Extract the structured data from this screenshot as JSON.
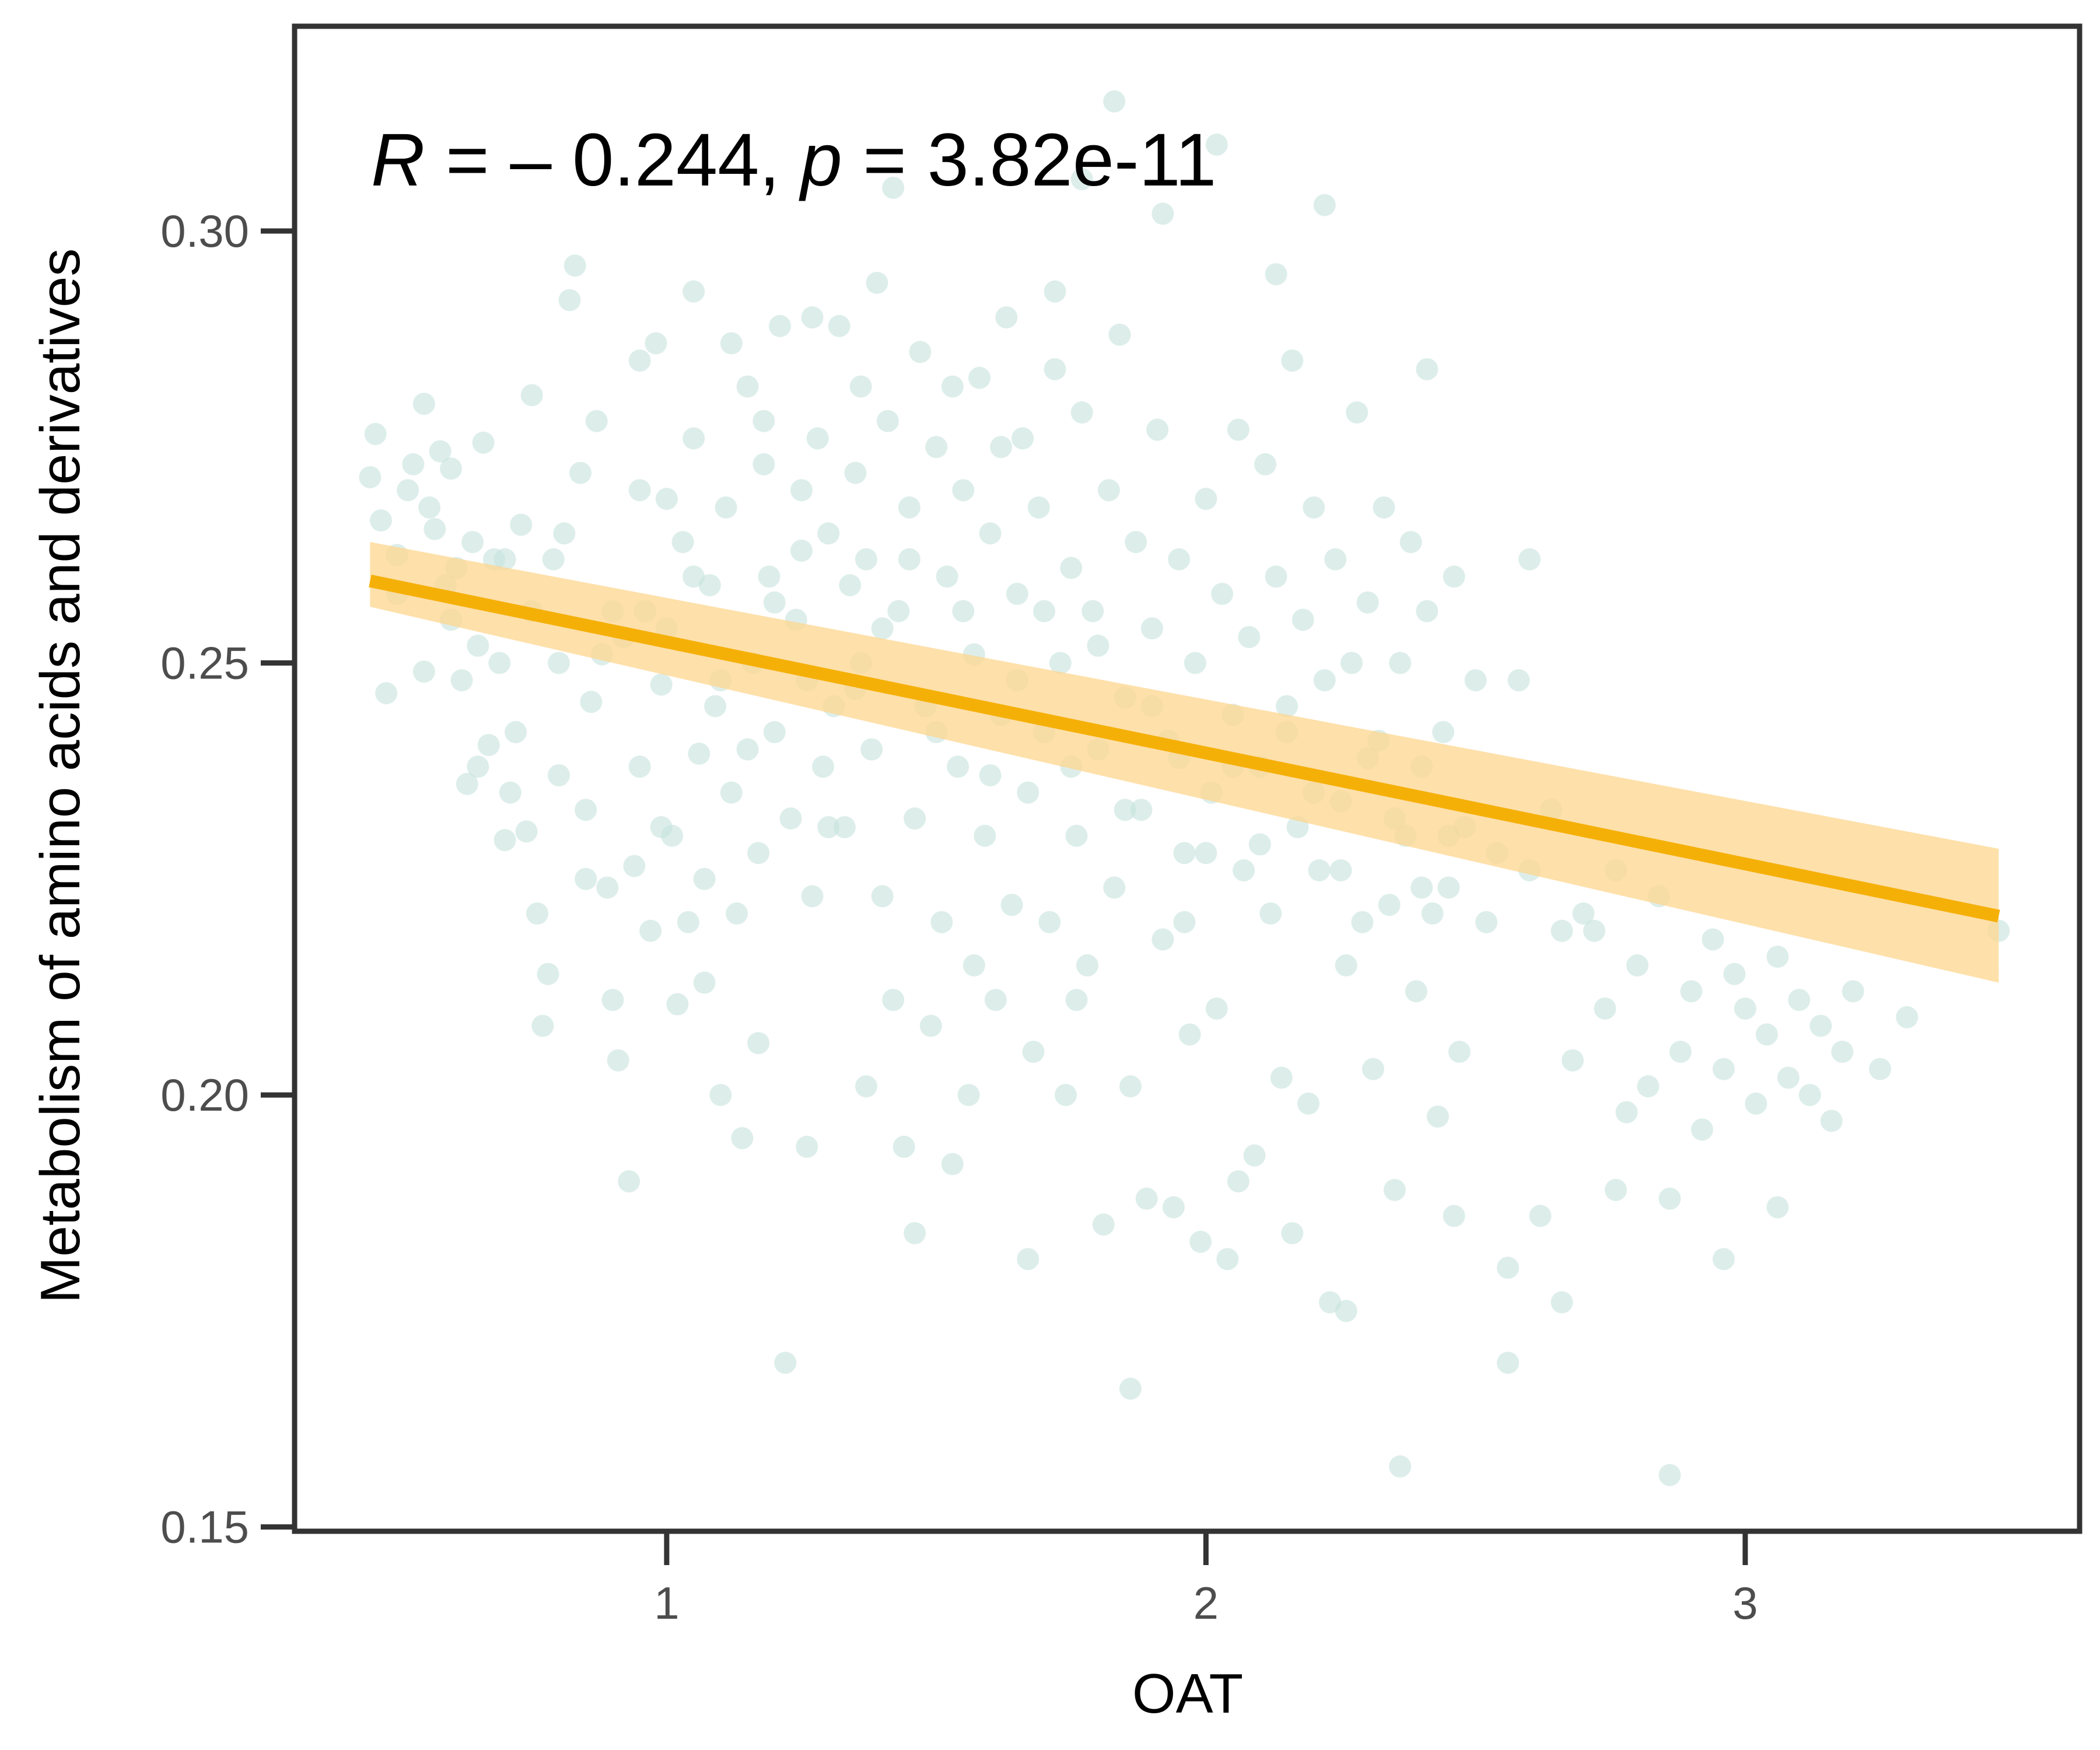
{
  "chart_data": {
    "type": "scatter",
    "xlabel": "OAT",
    "ylabel": "Metabolism of amino acids and derivatives",
    "xlim": [
      0.31,
      3.62
    ],
    "ylim": [
      0.1495,
      0.3237
    ],
    "xticks": [
      1,
      2,
      3
    ],
    "yticks": [
      0.15,
      0.2,
      0.25,
      0.3
    ],
    "xtick_labels": [
      "1",
      "2",
      "3"
    ],
    "ytick_labels": [
      "0.15",
      "0.20",
      "0.25",
      "0.30"
    ],
    "annotation": {
      "r_label": "R",
      "r_value": "= – 0.244,",
      "p_label": "p",
      "p_value": "= 3.82e-11"
    },
    "colors": {
      "points": "#c7e3dc",
      "line": "#f5b008",
      "band": "#fdd58e",
      "axis": "#333333"
    },
    "regression": {
      "x": [
        0.45,
        3.47
      ],
      "y": [
        0.2595,
        0.2207
      ],
      "ci_lower": [
        0.2565,
        0.213
      ],
      "ci_upper": [
        0.264,
        0.2285
      ]
    },
    "points": [
      [
        0.45,
        0.2715
      ],
      [
        0.46,
        0.2765
      ],
      [
        0.47,
        0.2665
      ],
      [
        0.48,
        0.2465
      ],
      [
        0.5,
        0.2625
      ],
      [
        0.52,
        0.27
      ],
      [
        0.53,
        0.273
      ],
      [
        0.55,
        0.28
      ],
      [
        0.56,
        0.268
      ],
      [
        0.57,
        0.2655
      ],
      [
        0.58,
        0.2745
      ],
      [
        0.59,
        0.259
      ],
      [
        0.6,
        0.2725
      ],
      [
        0.61,
        0.261
      ],
      [
        0.62,
        0.248
      ],
      [
        0.63,
        0.236
      ],
      [
        0.64,
        0.264
      ],
      [
        0.65,
        0.252
      ],
      [
        0.66,
        0.2755
      ],
      [
        0.67,
        0.2405
      ],
      [
        0.68,
        0.262
      ],
      [
        0.69,
        0.25
      ],
      [
        0.7,
        0.2295
      ],
      [
        0.71,
        0.235
      ],
      [
        0.72,
        0.242
      ],
      [
        0.73,
        0.266
      ],
      [
        0.74,
        0.2305
      ],
      [
        0.75,
        0.281
      ],
      [
        0.76,
        0.221
      ],
      [
        0.77,
        0.208
      ],
      [
        0.78,
        0.214
      ],
      [
        0.79,
        0.262
      ],
      [
        0.8,
        0.237
      ],
      [
        0.81,
        0.265
      ],
      [
        0.82,
        0.292
      ],
      [
        0.83,
        0.296
      ],
      [
        0.84,
        0.272
      ],
      [
        0.85,
        0.233
      ],
      [
        0.86,
        0.2455
      ],
      [
        0.87,
        0.278
      ],
      [
        0.88,
        0.251
      ],
      [
        0.89,
        0.224
      ],
      [
        0.9,
        0.211
      ],
      [
        0.91,
        0.204
      ],
      [
        0.92,
        0.253
      ],
      [
        0.93,
        0.19
      ],
      [
        0.94,
        0.2265
      ],
      [
        0.95,
        0.238
      ],
      [
        0.96,
        0.256
      ],
      [
        0.97,
        0.219
      ],
      [
        0.98,
        0.287
      ],
      [
        0.99,
        0.2475
      ],
      [
        1.0,
        0.269
      ],
      [
        1.01,
        0.23
      ],
      [
        1.02,
        0.2105
      ],
      [
        1.03,
        0.264
      ],
      [
        1.04,
        0.22
      ],
      [
        1.05,
        0.276
      ],
      [
        1.06,
        0.2395
      ],
      [
        1.07,
        0.225
      ],
      [
        1.08,
        0.259
      ],
      [
        1.09,
        0.245
      ],
      [
        1.1,
        0.2
      ],
      [
        1.11,
        0.268
      ],
      [
        1.12,
        0.235
      ],
      [
        1.13,
        0.221
      ],
      [
        1.14,
        0.195
      ],
      [
        1.15,
        0.282
      ],
      [
        1.16,
        0.25
      ],
      [
        1.17,
        0.228
      ],
      [
        1.18,
        0.273
      ],
      [
        1.19,
        0.26
      ],
      [
        1.2,
        0.242
      ],
      [
        1.21,
        0.289
      ],
      [
        1.22,
        0.169
      ],
      [
        1.23,
        0.232
      ],
      [
        1.24,
        0.255
      ],
      [
        1.25,
        0.27
      ],
      [
        1.26,
        0.248
      ],
      [
        1.27,
        0.223
      ],
      [
        1.28,
        0.276
      ],
      [
        1.29,
        0.238
      ],
      [
        1.3,
        0.265
      ],
      [
        1.31,
        0.245
      ],
      [
        1.32,
        0.289
      ],
      [
        1.33,
        0.231
      ],
      [
        1.34,
        0.259
      ],
      [
        1.35,
        0.272
      ],
      [
        1.36,
        0.25
      ],
      [
        1.37,
        0.262
      ],
      [
        1.38,
        0.24
      ],
      [
        1.39,
        0.294
      ],
      [
        1.4,
        0.223
      ],
      [
        1.41,
        0.278
      ],
      [
        1.42,
        0.211
      ],
      [
        1.43,
        0.256
      ],
      [
        1.44,
        0.194
      ],
      [
        1.45,
        0.268
      ],
      [
        1.46,
        0.232
      ],
      [
        1.47,
        0.286
      ],
      [
        1.48,
        0.245
      ],
      [
        1.49,
        0.208
      ],
      [
        1.5,
        0.275
      ],
      [
        1.51,
        0.22
      ],
      [
        1.52,
        0.26
      ],
      [
        1.53,
        0.192
      ],
      [
        1.54,
        0.238
      ],
      [
        1.55,
        0.27
      ],
      [
        1.56,
        0.2
      ],
      [
        1.57,
        0.251
      ],
      [
        1.58,
        0.283
      ],
      [
        1.59,
        0.23
      ],
      [
        1.6,
        0.265
      ],
      [
        1.61,
        0.211
      ],
      [
        1.62,
        0.244
      ],
      [
        1.63,
        0.29
      ],
      [
        1.64,
        0.222
      ],
      [
        1.65,
        0.258
      ],
      [
        1.66,
        0.276
      ],
      [
        1.67,
        0.235
      ],
      [
        1.68,
        0.205
      ],
      [
        1.69,
        0.268
      ],
      [
        1.7,
        0.242
      ],
      [
        1.71,
        0.22
      ],
      [
        1.72,
        0.293
      ],
      [
        1.73,
        0.25
      ],
      [
        1.74,
        0.2
      ],
      [
        1.75,
        0.261
      ],
      [
        1.76,
        0.23
      ],
      [
        1.77,
        0.279
      ],
      [
        1.78,
        0.215
      ],
      [
        1.79,
        0.256
      ],
      [
        1.8,
        0.24
      ],
      [
        1.81,
        0.185
      ],
      [
        1.82,
        0.27
      ],
      [
        1.83,
        0.224
      ],
      [
        1.84,
        0.288
      ],
      [
        1.85,
        0.246
      ],
      [
        1.86,
        0.201
      ],
      [
        1.87,
        0.264
      ],
      [
        1.88,
        0.233
      ],
      [
        1.89,
        0.188
      ],
      [
        1.9,
        0.254
      ],
      [
        1.91,
        0.277
      ],
      [
        1.92,
        0.218
      ],
      [
        1.93,
        0.241
      ],
      [
        1.94,
        0.187
      ],
      [
        1.95,
        0.262
      ],
      [
        1.96,
        0.228
      ],
      [
        1.97,
        0.207
      ],
      [
        1.98,
        0.25
      ],
      [
        1.99,
        0.183
      ],
      [
        2.0,
        0.269
      ],
      [
        2.01,
        0.235
      ],
      [
        2.02,
        0.21
      ],
      [
        2.03,
        0.258
      ],
      [
        2.04,
        0.181
      ],
      [
        2.05,
        0.244
      ],
      [
        2.06,
        0.277
      ],
      [
        2.07,
        0.226
      ],
      [
        2.08,
        0.253
      ],
      [
        2.09,
        0.193
      ],
      [
        2.1,
        0.238
      ],
      [
        2.11,
        0.273
      ],
      [
        2.12,
        0.221
      ],
      [
        2.13,
        0.26
      ],
      [
        2.14,
        0.202
      ],
      [
        2.15,
        0.245
      ],
      [
        2.16,
        0.285
      ],
      [
        2.17,
        0.231
      ],
      [
        2.18,
        0.255
      ],
      [
        2.19,
        0.199
      ],
      [
        2.2,
        0.268
      ],
      [
        2.21,
        0.226
      ],
      [
        2.22,
        0.248
      ],
      [
        2.23,
        0.176
      ],
      [
        2.24,
        0.262
      ],
      [
        2.25,
        0.234
      ],
      [
        2.26,
        0.215
      ],
      [
        2.27,
        0.25
      ],
      [
        2.28,
        0.279
      ],
      [
        2.29,
        0.22
      ],
      [
        2.3,
        0.257
      ],
      [
        2.31,
        0.203
      ],
      [
        2.32,
        0.241
      ],
      [
        2.33,
        0.268
      ],
      [
        2.34,
        0.222
      ],
      [
        2.35,
        0.189
      ],
      [
        2.36,
        0.25
      ],
      [
        2.37,
        0.23
      ],
      [
        2.38,
        0.264
      ],
      [
        2.39,
        0.212
      ],
      [
        2.4,
        0.238
      ],
      [
        2.41,
        0.256
      ],
      [
        2.42,
        0.221
      ],
      [
        2.43,
        0.1975
      ],
      [
        2.44,
        0.242
      ],
      [
        2.45,
        0.224
      ],
      [
        2.46,
        0.26
      ],
      [
        2.47,
        0.205
      ],
      [
        2.48,
        0.231
      ],
      [
        2.5,
        0.248
      ],
      [
        2.52,
        0.22
      ],
      [
        2.54,
        0.228
      ],
      [
        2.56,
        0.18
      ],
      [
        2.58,
        0.248
      ],
      [
        2.6,
        0.226
      ],
      [
        2.62,
        0.186
      ],
      [
        2.64,
        0.233
      ],
      [
        2.66,
        0.219
      ],
      [
        2.68,
        0.204
      ],
      [
        2.7,
        0.221
      ],
      [
        2.72,
        0.219
      ],
      [
        2.74,
        0.21
      ],
      [
        2.76,
        0.226
      ],
      [
        2.78,
        0.198
      ],
      [
        2.8,
        0.215
      ],
      [
        2.82,
        0.201
      ],
      [
        2.84,
        0.223
      ],
      [
        2.86,
        0.188
      ],
      [
        2.88,
        0.205
      ],
      [
        2.9,
        0.212
      ],
      [
        2.92,
        0.196
      ],
      [
        2.94,
        0.218
      ],
      [
        2.96,
        0.203
      ],
      [
        2.98,
        0.214
      ],
      [
        3.0,
        0.21
      ],
      [
        3.02,
        0.199
      ],
      [
        3.04,
        0.207
      ],
      [
        3.06,
        0.216
      ],
      [
        3.08,
        0.202
      ],
      [
        3.1,
        0.211
      ],
      [
        3.12,
        0.2
      ],
      [
        3.14,
        0.208
      ],
      [
        3.16,
        0.197
      ],
      [
        3.18,
        0.205
      ],
      [
        3.2,
        0.212
      ],
      [
        3.25,
        0.203
      ],
      [
        3.3,
        0.209
      ],
      [
        3.47,
        0.219
      ],
      [
        0.5,
        0.258
      ],
      [
        0.55,
        0.249
      ],
      [
        0.6,
        0.255
      ],
      [
        0.65,
        0.238
      ],
      [
        0.7,
        0.262
      ],
      [
        0.75,
        0.256
      ],
      [
        0.8,
        0.25
      ],
      [
        0.85,
        0.225
      ],
      [
        0.9,
        0.256
      ],
      [
        0.95,
        0.27
      ],
      [
        1.0,
        0.254
      ],
      [
        1.05,
        0.26
      ],
      [
        1.1,
        0.248
      ],
      [
        1.15,
        0.24
      ],
      [
        1.2,
        0.257
      ],
      [
        1.25,
        0.263
      ],
      [
        1.3,
        0.231
      ],
      [
        1.35,
        0.247
      ],
      [
        1.4,
        0.254
      ],
      [
        1.45,
        0.262
      ],
      [
        1.5,
        0.242
      ],
      [
        1.55,
        0.256
      ],
      [
        1.6,
        0.237
      ],
      [
        1.65,
        0.248
      ],
      [
        1.7,
        0.256
      ],
      [
        1.75,
        0.238
      ],
      [
        1.8,
        0.252
      ],
      [
        1.85,
        0.233
      ],
      [
        1.9,
        0.245
      ],
      [
        1.95,
        0.239
      ],
      [
        2.0,
        0.228
      ],
      [
        2.05,
        0.238
      ],
      [
        2.1,
        0.229
      ],
      [
        2.15,
        0.242
      ],
      [
        2.2,
        0.235
      ],
      [
        2.25,
        0.226
      ],
      [
        2.3,
        0.239
      ],
      [
        2.35,
        0.232
      ],
      [
        2.4,
        0.224
      ],
      [
        2.45,
        0.23
      ],
      [
        0.95,
        0.285
      ],
      [
        1.05,
        0.293
      ],
      [
        1.12,
        0.287
      ],
      [
        1.18,
        0.278
      ],
      [
        1.27,
        0.29
      ],
      [
        1.36,
        0.282
      ],
      [
        1.42,
        0.305
      ],
      [
        1.53,
        0.282
      ],
      [
        1.62,
        0.275
      ],
      [
        1.72,
        0.284
      ],
      [
        1.77,
        0.306
      ],
      [
        1.83,
        0.315
      ],
      [
        1.92,
        0.302
      ],
      [
        2.02,
        0.31
      ],
      [
        2.13,
        0.295
      ],
      [
        2.22,
        0.303
      ],
      [
        2.41,
        0.284
      ],
      [
        2.6,
        0.262
      ],
      [
        0.99,
        0.231
      ],
      [
        1.07,
        0.213
      ],
      [
        1.17,
        0.206
      ],
      [
        1.26,
        0.194
      ],
      [
        1.37,
        0.201
      ],
      [
        1.46,
        0.184
      ],
      [
        1.57,
        0.215
      ],
      [
        1.67,
        0.181
      ],
      [
        1.76,
        0.211
      ],
      [
        1.86,
        0.166
      ],
      [
        1.96,
        0.22
      ],
      [
        2.06,
        0.19
      ],
      [
        2.16,
        0.184
      ],
      [
        2.26,
        0.175
      ],
      [
        2.36,
        0.157
      ],
      [
        2.46,
        0.186
      ],
      [
        2.56,
        0.169
      ],
      [
        2.66,
        0.176
      ],
      [
        2.76,
        0.189
      ],
      [
        2.86,
        0.156
      ],
      [
        2.96,
        0.181
      ],
      [
        3.06,
        0.187
      ]
    ]
  }
}
